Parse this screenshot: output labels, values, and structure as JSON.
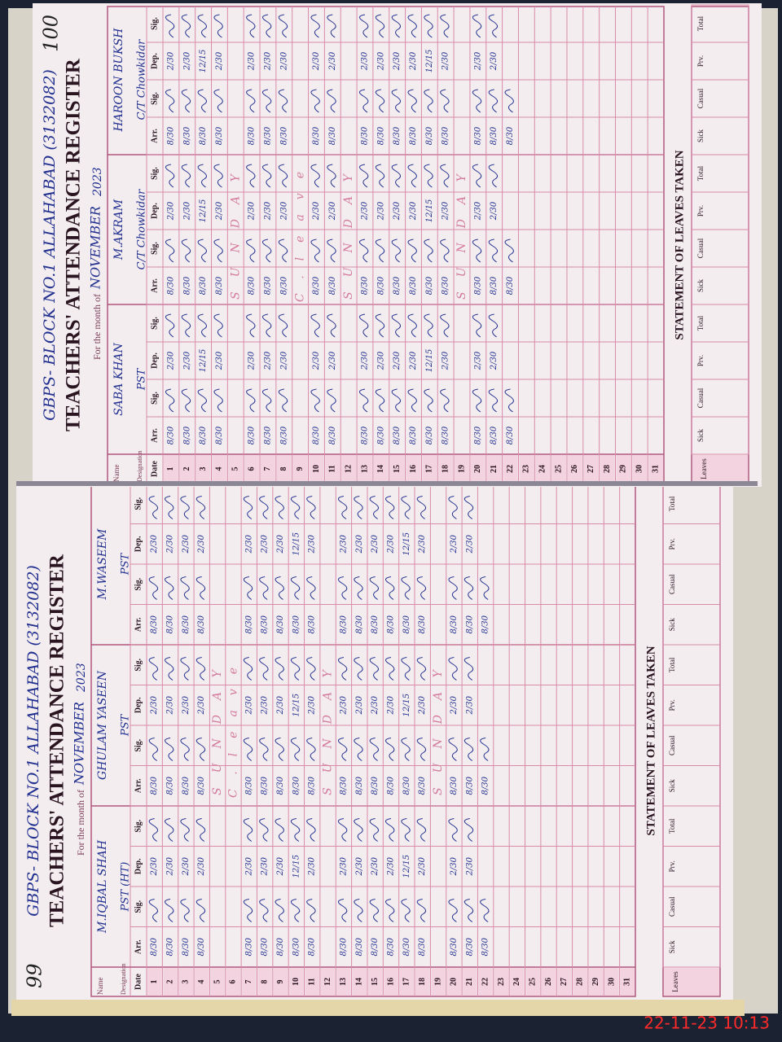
{
  "pages": [
    {
      "page_number": "99",
      "school": "GBPS- BLOCK NO.1 ALLAHABAD (3132082)",
      "title": "TEACHERS' ATTENDANCE REGISTER",
      "month_label": "For the month of",
      "month": "NOVEMBER",
      "year": "2023",
      "name_label": "Name",
      "designation_label": "Designation",
      "date_label": "Date",
      "teachers": [
        {
          "name": "M.IQBAL SHAH",
          "designation": "PST (HT)"
        },
        {
          "name": "GHULAM YASEEN",
          "designation": "PST"
        },
        {
          "name": "M.WASEEM",
          "designation": "PST"
        }
      ],
      "columns": [
        "Arr.",
        "Sig.",
        "Dep.",
        "Sig."
      ],
      "rows": [
        {
          "date": 1,
          "arr": "8/30",
          "dep": "2/30"
        },
        {
          "date": 2,
          "arr": "8/30",
          "dep": "2/30"
        },
        {
          "date": 3,
          "arr": "8/30",
          "dep": "2/30"
        },
        {
          "date": 4,
          "arr": "8/30",
          "dep": "2/30"
        },
        {
          "date": 5,
          "note": "SUNDAY"
        },
        {
          "date": 6,
          "note": "C.leave"
        },
        {
          "date": 7,
          "arr": "8/30",
          "dep": "2/30"
        },
        {
          "date": 8,
          "arr": "8/30",
          "dep": "2/30"
        },
        {
          "date": 9,
          "arr": "8/30",
          "dep": "2/30"
        },
        {
          "date": 10,
          "arr": "8/30",
          "dep": "12/15"
        },
        {
          "date": 11,
          "arr": "8/30",
          "dep": "2/30"
        },
        {
          "date": 12,
          "note": "SUNDAY"
        },
        {
          "date": 13,
          "arr": "8/30",
          "dep": "2/30"
        },
        {
          "date": 14,
          "arr": "8/30",
          "dep": "2/30"
        },
        {
          "date": 15,
          "arr": "8/30",
          "dep": "2/30"
        },
        {
          "date": 16,
          "arr": "8/30",
          "dep": "2/30"
        },
        {
          "date": 17,
          "arr": "8/30",
          "dep": "12/15"
        },
        {
          "date": 18,
          "arr": "8/30",
          "dep": "2/30"
        },
        {
          "date": 19,
          "note": "SUNDAY"
        },
        {
          "date": 20,
          "arr": "8/30",
          "dep": "2/30"
        },
        {
          "date": 21,
          "arr": "8/30",
          "dep": "2/30"
        },
        {
          "date": 22,
          "arr": "8/30"
        },
        {
          "date": 23
        },
        {
          "date": 24
        },
        {
          "date": 25
        },
        {
          "date": 26
        },
        {
          "date": 27
        },
        {
          "date": 28
        },
        {
          "date": 29
        },
        {
          "date": 30
        },
        {
          "date": 31
        }
      ],
      "statement": "STATEMENT OF LEAVES TAKEN",
      "leaves_label": "Leaves",
      "leave_columns": [
        "Sick",
        "Casual",
        "Prv.",
        "Total"
      ]
    },
    {
      "page_number": "100",
      "school": "GBPS- BLOCK NO.1 ALLAHABAD (3132082)",
      "title": "TEACHERS' ATTENDANCE REGISTER",
      "month_label": "For the month of",
      "month": "NOVEMBER",
      "year": "2023",
      "name_label": "Name",
      "designation_label": "Designation",
      "date_label": "Date",
      "teachers": [
        {
          "name": "SABA KHAN",
          "designation": "PST"
        },
        {
          "name": "M.AKRAM",
          "designation": "C/T Chowkidar"
        },
        {
          "name": "HAROON BUKSH",
          "designation": "C/T Chowkidar"
        }
      ],
      "columns": [
        "Arr.",
        "Sig.",
        "Dep.",
        "Sig."
      ],
      "rows": [
        {
          "date": 1,
          "arr": "8/30",
          "dep": "2/30"
        },
        {
          "date": 2,
          "arr": "8/30",
          "dep": "2/30"
        },
        {
          "date": 3,
          "arr": "8/30",
          "dep": "12/15"
        },
        {
          "date": 4,
          "arr": "8/30",
          "dep": "2/30"
        },
        {
          "date": 5,
          "note": "SUNDAY"
        },
        {
          "date": 6,
          "arr": "8/30",
          "dep": "2/30"
        },
        {
          "date": 7,
          "arr": "8/30",
          "dep": "2/30"
        },
        {
          "date": 8,
          "arr": "8/30",
          "dep": "2/30"
        },
        {
          "date": 9,
          "note": "C.leave"
        },
        {
          "date": 10,
          "arr": "8/30",
          "dep": "2/30"
        },
        {
          "date": 11,
          "arr": "8/30",
          "dep": "2/30"
        },
        {
          "date": 12,
          "note": "SUNDAY"
        },
        {
          "date": 13,
          "arr": "8/30",
          "dep": "2/30"
        },
        {
          "date": 14,
          "arr": "8/30",
          "dep": "2/30"
        },
        {
          "date": 15,
          "arr": "8/30",
          "dep": "2/30"
        },
        {
          "date": 16,
          "arr": "8/30",
          "dep": "2/30"
        },
        {
          "date": 17,
          "arr": "8/30",
          "dep": "12/15"
        },
        {
          "date": 18,
          "arr": "8/30",
          "dep": "2/30"
        },
        {
          "date": 19,
          "note": "SUNDAY"
        },
        {
          "date": 20,
          "arr": "8/30",
          "dep": "2/30"
        },
        {
          "date": 21,
          "arr": "8/30",
          "dep": "2/30"
        },
        {
          "date": 22,
          "arr": "8/30"
        },
        {
          "date": 23
        },
        {
          "date": 24
        },
        {
          "date": 25
        },
        {
          "date": 26
        },
        {
          "date": 27
        },
        {
          "date": 28
        },
        {
          "date": 29
        },
        {
          "date": 30
        },
        {
          "date": 31
        }
      ],
      "statement": "STATEMENT OF LEAVES TAKEN",
      "leaves_label": "Leaves",
      "leave_columns": [
        "Sick",
        "Casual",
        "Prv.",
        "Total"
      ]
    }
  ],
  "timestamp": "22-11-23 10:13"
}
